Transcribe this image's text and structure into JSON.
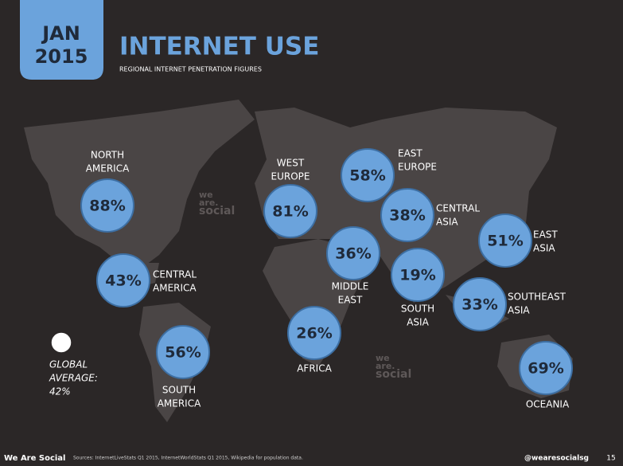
{
  "header": {
    "date": [
      "JAN",
      "2015"
    ],
    "title": "INTERNET USE",
    "subtitle": "REGIONAL INTERNET PENETRATION FIGURES"
  },
  "regions": [
    {
      "name": [
        "NORTH",
        "AMERICA"
      ],
      "value": "88%"
    },
    {
      "name": [
        "WEST",
        "EUROPE"
      ],
      "value": "81%"
    },
    {
      "name": [
        "EAST",
        "EUROPE"
      ],
      "value": "58%"
    },
    {
      "name": [
        "CENTRAL",
        "ASIA"
      ],
      "value": "38%"
    },
    {
      "name": [
        "EAST",
        "ASIA"
      ],
      "value": "51%"
    },
    {
      "name": [
        "MIDDLE",
        "EAST"
      ],
      "value": "36%"
    },
    {
      "name": [
        "SOUTH",
        "ASIA"
      ],
      "value": "19%"
    },
    {
      "name": [
        "SOUTHEAST",
        "ASIA"
      ],
      "value": "33%"
    },
    {
      "name": [
        "CENTRAL",
        "AMERICA"
      ],
      "value": "43%"
    },
    {
      "name": [
        "SOUTH",
        "AMERICA"
      ],
      "value": "56%"
    },
    {
      "name": [
        "AFRICA"
      ],
      "value": "26%"
    },
    {
      "name": [
        "OCEANIA"
      ],
      "value": "69%"
    }
  ],
  "global_average": [
    "GLOBAL",
    "AVERAGE:",
    "42%"
  ],
  "watermark": [
    "we",
    "are.",
    "social"
  ],
  "footer": {
    "brand": "We Are Social",
    "sources": "Sources: InternetLiveStats Q1 2015, InternetWorldStats Q1 2015, Wikipedia for population data.",
    "handle": "@wearesocialsg",
    "page": "15"
  }
}
